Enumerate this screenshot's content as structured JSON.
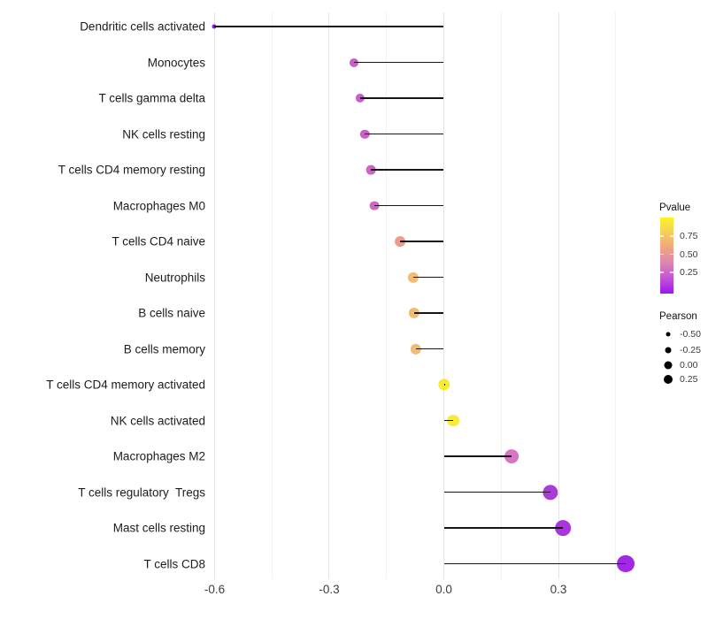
{
  "chart_data": {
    "type": "scatter",
    "subtype": "lollipop",
    "orientation": "horizontal",
    "title": "",
    "xlabel": "",
    "ylabel": "",
    "x_axis": {
      "ticks": [
        {
          "value": -0.6,
          "label": "-0.6"
        },
        {
          "value": -0.3,
          "label": "-0.3"
        },
        {
          "value": 0.0,
          "label": "0.0"
        },
        {
          "value": 0.3,
          "label": "0.3"
        }
      ],
      "minor_gridlines": [
        -0.45,
        -0.15,
        0.15,
        0.45
      ],
      "range": [
        -0.61,
        0.55
      ],
      "grid": "vertical-only"
    },
    "categories": [
      "Dendritic cells activated",
      "Monocytes",
      "T cells gamma delta",
      "NK cells resting",
      "T cells CD4 memory resting",
      "Macrophages M0",
      "T cells CD4 naive",
      "Neutrophils",
      "B cells naive",
      "B cells memory",
      "T cells CD4 memory activated",
      "NK cells activated",
      "Macrophages M2",
      "T cells regulatory  Tregs",
      "Mast cells resting",
      "T cells CD8"
    ],
    "series": [
      {
        "name": "Pearson",
        "values": [
          -0.6,
          -0.235,
          -0.22,
          -0.207,
          -0.19,
          -0.181,
          -0.115,
          -0.08,
          -0.078,
          -0.074,
          0.001,
          0.025,
          0.178,
          0.279,
          0.312,
          0.475
        ]
      }
    ],
    "point_colors": [
      "#8E19E4",
      "#C75FC7",
      "#C55FC9",
      "#C763C4",
      "#C966C1",
      "#CB69BD",
      "#EC9C8C",
      "#F2BC74",
      "#F2BC74",
      "#F1BB76",
      "#F8EC2F",
      "#F7EC3E",
      "#D675C3",
      "#AB3BD9",
      "#A935DC",
      "#A229E3"
    ],
    "pvalue_estimates": [
      0.02,
      0.33,
      0.33,
      0.34,
      0.36,
      0.38,
      0.58,
      0.67,
      0.67,
      0.68,
      0.95,
      0.93,
      0.3,
      0.13,
      0.11,
      0.08
    ],
    "legend": {
      "position": "right",
      "pvalue": {
        "title": "Pvalue",
        "tick_labels": [
          "0.75",
          "0.50",
          "0.25"
        ],
        "gradient_top_to_bottom": [
          "#FBF224",
          "#F6CE5B",
          "#EFA583",
          "#DE85B3",
          "#C253D4",
          "#9C15F1"
        ]
      },
      "pearson": {
        "title": "Pearson",
        "items": [
          {
            "label": "-0.50"
          },
          {
            "label": "-0.25"
          },
          {
            "label": "0.00"
          },
          {
            "label": "0.25"
          }
        ]
      }
    },
    "style": {
      "stem_color": "#161616",
      "background": "#ffffff",
      "gridline_major_color": "#e5e5e5",
      "gridline_minor_color": "#f2f2f2"
    }
  }
}
